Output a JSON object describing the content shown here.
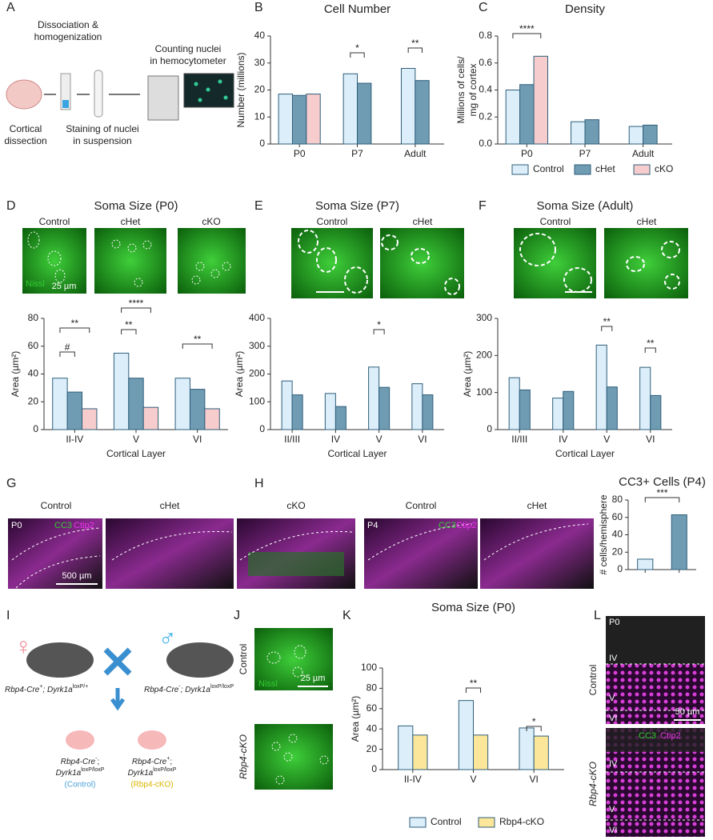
{
  "panel_labels": [
    "A",
    "B",
    "C",
    "D",
    "E",
    "F",
    "G",
    "H",
    "I",
    "J",
    "K",
    "L"
  ],
  "schematic": {
    "dissociation": [
      "Dissociation &",
      "homogenization"
    ],
    "counting": [
      "Counting nuclei",
      "in hemocytometer"
    ],
    "cortical": [
      "Cortical",
      "dissection"
    ],
    "staining": [
      "Staining of nuclei",
      "in suspension"
    ]
  },
  "images": {
    "d": {
      "labels": [
        "Control",
        "cHet",
        "cKO"
      ],
      "stain": "Nissl",
      "scale": "25 µm"
    },
    "e": {
      "labels": [
        "Control",
        "cHet"
      ]
    },
    "f": {
      "labels": [
        "Control",
        "cHet"
      ]
    },
    "g": {
      "labels": [
        "Control",
        "cHet",
        "cKO"
      ],
      "age": "P0",
      "stain1": "CC3",
      "stain2": "Ctip2",
      "scale": "500 µm"
    },
    "h": {
      "labels": [
        "Control",
        "cHet"
      ],
      "age": "P4",
      "stain1": "CC3",
      "stain2": "Ctip2"
    },
    "j": {
      "labels": [
        "Control",
        "Rbp4-cKO"
      ],
      "stain": "Nissl",
      "scale": "25 µm"
    },
    "l": {
      "labels": [
        "Control",
        "Rbp4-cKO"
      ],
      "age": "P0",
      "layers_top": [
        "IV",
        "V",
        "VI"
      ],
      "layers_bottom": [
        "IV",
        "V",
        "VI"
      ],
      "scale": "50 µm",
      "stain1": "CC3",
      "stain2": "Ctip2"
    }
  },
  "cross": {
    "female": "♀",
    "male": "♂",
    "mother": [
      "Rbp4-Cre",
      "+",
      "; Dyrk1a",
      "loxP/+"
    ],
    "father": [
      "Rbp4-Cre",
      "-",
      "; Dyrk1a",
      "loxP/loxP"
    ],
    "pup1": [
      "Rbp4-Cre",
      "-",
      ";",
      "Dyrk1a",
      "loxP/loxP",
      "(Control)"
    ],
    "pup2": [
      "Rbp4-Cre",
      "+",
      ";",
      "Dyrk1a",
      "loxP/loxP",
      "(Rbp4-cKO)"
    ]
  },
  "chart_data": [
    {
      "type": "bar",
      "title": "Cell Number",
      "y_label": "Number (millions)",
      "categories": [
        "P0",
        "P7",
        "Adult"
      ],
      "series": [
        {
          "name": "Control",
          "color": "#dbeefa",
          "values": [
            18.5,
            26,
            28
          ]
        },
        {
          "name": "cHet",
          "color": "#6f9bb3",
          "values": [
            18,
            22.5,
            23.5
          ]
        },
        {
          "name": "cKO",
          "color": "#f7cccc",
          "values": [
            18.5,
            null,
            null
          ]
        }
      ],
      "ylim": [
        0,
        40
      ],
      "yticks": [
        0,
        10,
        20,
        30,
        40
      ],
      "annotations": [
        "*",
        "**"
      ]
    },
    {
      "type": "bar",
      "title": "Density",
      "y_label": [
        "Millions of cells/",
        "mg of cortex"
      ],
      "categories": [
        "P0",
        "P7",
        "Adult"
      ],
      "series": [
        {
          "name": "Control",
          "color": "#dbeefa",
          "values": [
            0.4,
            0.165,
            0.13
          ]
        },
        {
          "name": "cHet",
          "color": "#6f9bb3",
          "values": [
            0.44,
            0.18,
            0.14
          ]
        },
        {
          "name": "cKO",
          "color": "#f7cccc",
          "values": [
            0.65,
            null,
            null
          ]
        }
      ],
      "ylim": [
        0,
        0.8
      ],
      "yticks": [
        {
          "value": 0,
          "label": "0.0"
        },
        0.2,
        0.4,
        0.6,
        0.8
      ],
      "annotations": [
        "****"
      ],
      "legend": "bottom"
    },
    {
      "type": "bar",
      "title": "Soma Size (P0)",
      "y_label": "Area (µm²)",
      "x_label": "Cortical Layer",
      "categories": [
        "II-IV",
        "V",
        "VI"
      ],
      "series": [
        {
          "name": "Control",
          "color": "#dbeefa",
          "values": [
            37,
            55,
            37
          ]
        },
        {
          "name": "cHet",
          "color": "#6f9bb3",
          "values": [
            27,
            37,
            29
          ]
        },
        {
          "name": "cKO",
          "color": "#f7cccc",
          "values": [
            15,
            16,
            15
          ]
        }
      ],
      "ylim": [
        0,
        80
      ],
      "yticks": [
        0,
        20,
        40,
        60,
        80
      ],
      "annotations": [
        "#",
        "**",
        "**",
        "****",
        "**"
      ]
    },
    {
      "type": "bar",
      "title": "Soma Size (P7)",
      "y_label": "Area (µm²)",
      "x_label": "Cortical Layer",
      "categories": [
        "II/III",
        "IV",
        "V",
        "VI"
      ],
      "series": [
        {
          "name": "Control",
          "color": "#dbeefa",
          "values": [
            175,
            130,
            225,
            165
          ]
        },
        {
          "name": "cHet",
          "color": "#6f9bb3",
          "values": [
            125,
            83,
            152,
            125
          ]
        }
      ],
      "ylim": [
        0,
        400
      ],
      "yticks": [
        0,
        100,
        200,
        300,
        400
      ],
      "annotations": [
        "*"
      ]
    },
    {
      "type": "bar",
      "title": "Soma Size (Adult)",
      "y_label": "Area (µm²)",
      "x_label": "Cortical Layer",
      "categories": [
        "II/III",
        "IV",
        "V",
        "VI"
      ],
      "series": [
        {
          "name": "Control",
          "color": "#dbeefa",
          "values": [
            140,
            85,
            228,
            168
          ]
        },
        {
          "name": "cHet",
          "color": "#6f9bb3",
          "values": [
            107,
            103,
            115,
            92
          ]
        }
      ],
      "ylim": [
        0,
        300
      ],
      "yticks": [
        0,
        100,
        200,
        300
      ],
      "annotations": [
        "**",
        "**"
      ]
    },
    {
      "type": "bar",
      "title": "CC3+ Cells (P4)",
      "y_label": "# cells/hemisphere",
      "categories": [
        null,
        null
      ],
      "values": [
        12,
        63
      ],
      "colors": [
        "#dbeefa",
        "#6f9bb3"
      ],
      "ylim": [
        0,
        80
      ],
      "yticks": [
        0,
        20,
        40,
        60,
        80
      ],
      "annotations": [
        "***"
      ]
    },
    {
      "type": "bar",
      "title": "Soma Size (P0)",
      "y_label": "Area (µm²)",
      "categories": [
        "II-IV",
        "V",
        "VI"
      ],
      "series": [
        {
          "name": "Control",
          "color": "#dbeefa",
          "values": [
            43,
            68,
            41
          ]
        },
        {
          "name": "Rbp4-cKO",
          "color": "#fbe69a",
          "values": [
            34,
            34,
            33
          ]
        }
      ],
      "ylim": [
        0,
        100
      ],
      "yticks": [
        0,
        20,
        40,
        60,
        80,
        100
      ],
      "annotations": [
        "**",
        "*"
      ],
      "legend": "bottom"
    }
  ]
}
